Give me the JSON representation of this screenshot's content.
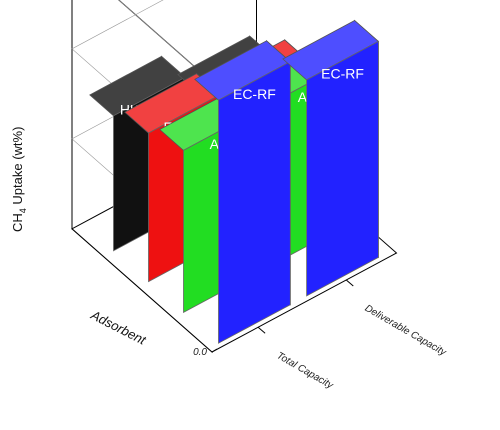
{
  "chart_data": {
    "type": "bar",
    "title": "",
    "ylabel": "CH4 Uptake (wt%)",
    "ylabel_parts": {
      "base": "CH",
      "sub": "4",
      "rest": " Uptake (wt%)"
    },
    "xlabel": "Adsorbent",
    "zlabel": "",
    "categories": [
      "Total Capacity",
      "Deliverable Capacity"
    ],
    "series": [
      {
        "name": "EC-RF",
        "values": [
          0.27,
          0.24
        ],
        "color": "#2222ff"
      },
      {
        "name": "AC",
        "values": [
          0.18,
          0.18
        ],
        "color": "#22dd22"
      },
      {
        "name": "EC-PA",
        "values": [
          0.165,
          0.15
        ],
        "color": "#ee1111"
      },
      {
        "name": "HKUST-1",
        "values": [
          0.15,
          0.12
        ],
        "color": "#111111"
      }
    ],
    "ylim": [
      0,
      0.3
    ],
    "yticks": [
      "0.0",
      "0.1",
      "0.2",
      "0.3"
    ],
    "grid": true,
    "projection": "3d"
  }
}
